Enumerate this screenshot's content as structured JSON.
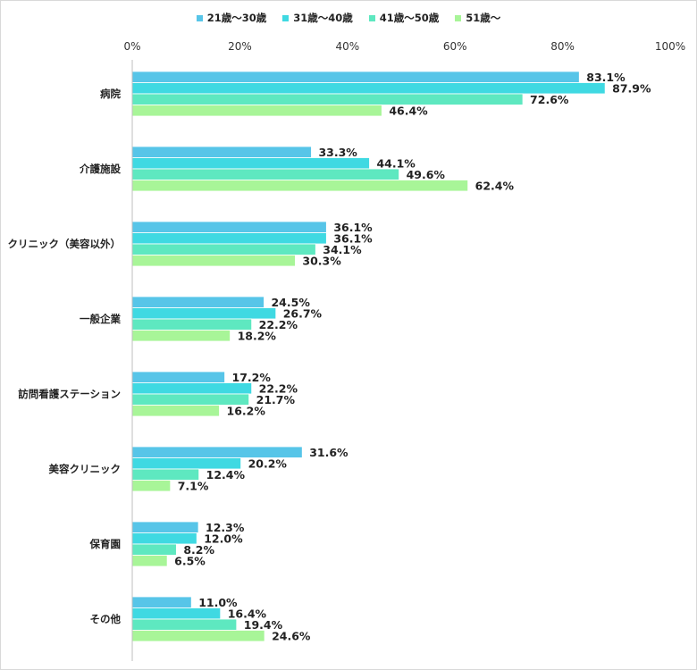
{
  "chart_data": {
    "type": "bar",
    "orientation": "horizontal",
    "categories": [
      "病院",
      "介護施設",
      "クリニック（美容以外）",
      "一般企業",
      "訪問看護ステーション",
      "美容クリニック",
      "保育園",
      "その他"
    ],
    "series": [
      {
        "name": "21歳〜30歳",
        "color": "#57c5e8",
        "values": [
          83.1,
          33.3,
          36.1,
          24.5,
          17.2,
          31.6,
          12.3,
          11.0
        ]
      },
      {
        "name": "31歳〜40歳",
        "color": "#3fd9e2",
        "values": [
          87.9,
          44.1,
          36.1,
          26.7,
          22.2,
          20.2,
          12.0,
          16.4
        ]
      },
      {
        "name": "41歳〜50歳",
        "color": "#5ee8c0",
        "values": [
          72.6,
          49.6,
          34.1,
          22.2,
          21.7,
          12.4,
          8.2,
          19.4
        ]
      },
      {
        "name": "51歳〜",
        "color": "#a8f598",
        "values": [
          46.4,
          62.4,
          30.3,
          18.2,
          16.2,
          7.1,
          6.5,
          24.6
        ]
      }
    ],
    "xlim": [
      0,
      100
    ],
    "ticks": [
      "0%",
      "20%",
      "40%",
      "60%",
      "80%",
      "100%"
    ],
    "tick_values": [
      0,
      20,
      40,
      60,
      80,
      100
    ],
    "value_suffix": "%",
    "legend_position": "top",
    "grid": false
  }
}
